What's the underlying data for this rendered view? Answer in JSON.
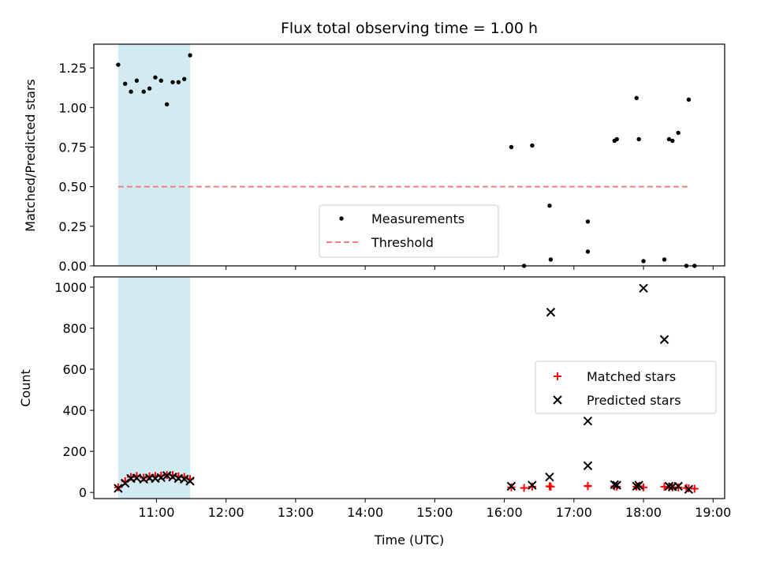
{
  "chart_data": [
    {
      "type": "scatter",
      "title": "Flux total observing time = 1.00 h",
      "ylabel": "Matched/Predicted stars",
      "xlabel": "",
      "xlim": [
        "10:06",
        "19:10"
      ],
      "ylim": [
        0,
        1.4
      ],
      "x_ticks": [
        "11:00",
        "12:00",
        "13:00",
        "14:00",
        "15:00",
        "16:00",
        "17:00",
        "18:00",
        "19:00"
      ],
      "y_ticks": [
        "0.00",
        "0.25",
        "0.50",
        "0.75",
        "1.00",
        "1.25"
      ],
      "highlight_span": [
        "10:27",
        "11:29"
      ],
      "highlight_color": "#add8e6",
      "threshold": {
        "name": "Threshold",
        "value": 0.5,
        "x_range": [
          "10:27",
          "18:38"
        ],
        "color": "#f08080"
      },
      "series": [
        {
          "name": "Measurements",
          "color": "#000000",
          "points": [
            [
              "10:27",
              1.27
            ],
            [
              "10:33",
              1.15
            ],
            [
              "10:38",
              1.1
            ],
            [
              "10:43",
              1.17
            ],
            [
              "10:49",
              1.1
            ],
            [
              "10:54",
              1.12
            ],
            [
              "10:59",
              1.19
            ],
            [
              "11:04",
              1.17
            ],
            [
              "11:09",
              1.02
            ],
            [
              "11:14",
              1.16
            ],
            [
              "11:19",
              1.16
            ],
            [
              "11:24",
              1.18
            ],
            [
              "11:29",
              1.33
            ],
            [
              "16:06",
              0.75
            ],
            [
              "16:17",
              0.0
            ],
            [
              "16:24",
              0.76
            ],
            [
              "16:39",
              0.38
            ],
            [
              "16:40",
              0.04
            ],
            [
              "17:12",
              0.28
            ],
            [
              "17:12",
              0.09
            ],
            [
              "17:35",
              0.79
            ],
            [
              "17:37",
              0.8
            ],
            [
              "17:54",
              1.06
            ],
            [
              "17:56",
              0.8
            ],
            [
              "18:00",
              0.03
            ],
            [
              "18:18",
              0.04
            ],
            [
              "18:22",
              0.8
            ],
            [
              "18:25",
              0.79
            ],
            [
              "18:30",
              0.84
            ],
            [
              "18:37",
              0.0
            ],
            [
              "18:39",
              1.05
            ],
            [
              "18:44",
              0.0
            ]
          ]
        }
      ],
      "legend_position": "lower-center"
    },
    {
      "type": "scatter",
      "title": "",
      "ylabel": "Count",
      "xlabel": "Time (UTC)",
      "xlim": [
        "10:06",
        "19:10"
      ],
      "ylim": [
        -30,
        1050
      ],
      "x_ticks": [
        "11:00",
        "12:00",
        "13:00",
        "14:00",
        "15:00",
        "16:00",
        "17:00",
        "18:00",
        "19:00"
      ],
      "y_ticks": [
        "0",
        "200",
        "400",
        "600",
        "800",
        "1000"
      ],
      "highlight_span": [
        "10:27",
        "11:29"
      ],
      "highlight_color": "#add8e6",
      "series": [
        {
          "name": "Matched stars",
          "marker": "plus",
          "color": "#ff0000",
          "points": [
            [
              "10:27",
              25
            ],
            [
              "10:33",
              55
            ],
            [
              "10:38",
              75
            ],
            [
              "10:43",
              80
            ],
            [
              "10:49",
              72
            ],
            [
              "10:54",
              78
            ],
            [
              "10:59",
              80
            ],
            [
              "11:04",
              82
            ],
            [
              "11:09",
              85
            ],
            [
              "11:14",
              85
            ],
            [
              "11:19",
              78
            ],
            [
              "11:24",
              75
            ],
            [
              "11:29",
              65
            ],
            [
              "16:06",
              25
            ],
            [
              "16:17",
              22
            ],
            [
              "16:24",
              28
            ],
            [
              "16:39",
              30
            ],
            [
              "16:40",
              28
            ],
            [
              "17:12",
              32
            ],
            [
              "17:12",
              30
            ],
            [
              "17:35",
              30
            ],
            [
              "17:37",
              28
            ],
            [
              "17:54",
              28
            ],
            [
              "17:56",
              30
            ],
            [
              "18:00",
              25
            ],
            [
              "18:18",
              28
            ],
            [
              "18:22",
              25
            ],
            [
              "18:25",
              25
            ],
            [
              "18:30",
              25
            ],
            [
              "18:37",
              22
            ],
            [
              "18:39",
              20
            ],
            [
              "18:44",
              18
            ]
          ]
        },
        {
          "name": "Predicted stars",
          "marker": "x",
          "color": "#000000",
          "points": [
            [
              "10:27",
              20
            ],
            [
              "10:33",
              45
            ],
            [
              "10:38",
              68
            ],
            [
              "10:43",
              70
            ],
            [
              "10:49",
              65
            ],
            [
              "10:54",
              70
            ],
            [
              "10:59",
              68
            ],
            [
              "11:04",
              72
            ],
            [
              "11:09",
              82
            ],
            [
              "11:14",
              75
            ],
            [
              "11:19",
              68
            ],
            [
              "11:24",
              65
            ],
            [
              "11:29",
              55
            ],
            [
              "16:06",
              30
            ],
            [
              "16:24",
              35
            ],
            [
              "16:39",
              75
            ],
            [
              "16:40",
              878
            ],
            [
              "17:12",
              130
            ],
            [
              "17:12",
              348
            ],
            [
              "17:35",
              38
            ],
            [
              "17:37",
              35
            ],
            [
              "17:54",
              30
            ],
            [
              "17:56",
              35
            ],
            [
              "18:00",
              995
            ],
            [
              "18:18",
              745
            ],
            [
              "18:22",
              30
            ],
            [
              "18:25",
              28
            ],
            [
              "18:30",
              30
            ],
            [
              "18:39",
              15
            ]
          ]
        }
      ],
      "legend_position": "center-right"
    }
  ]
}
